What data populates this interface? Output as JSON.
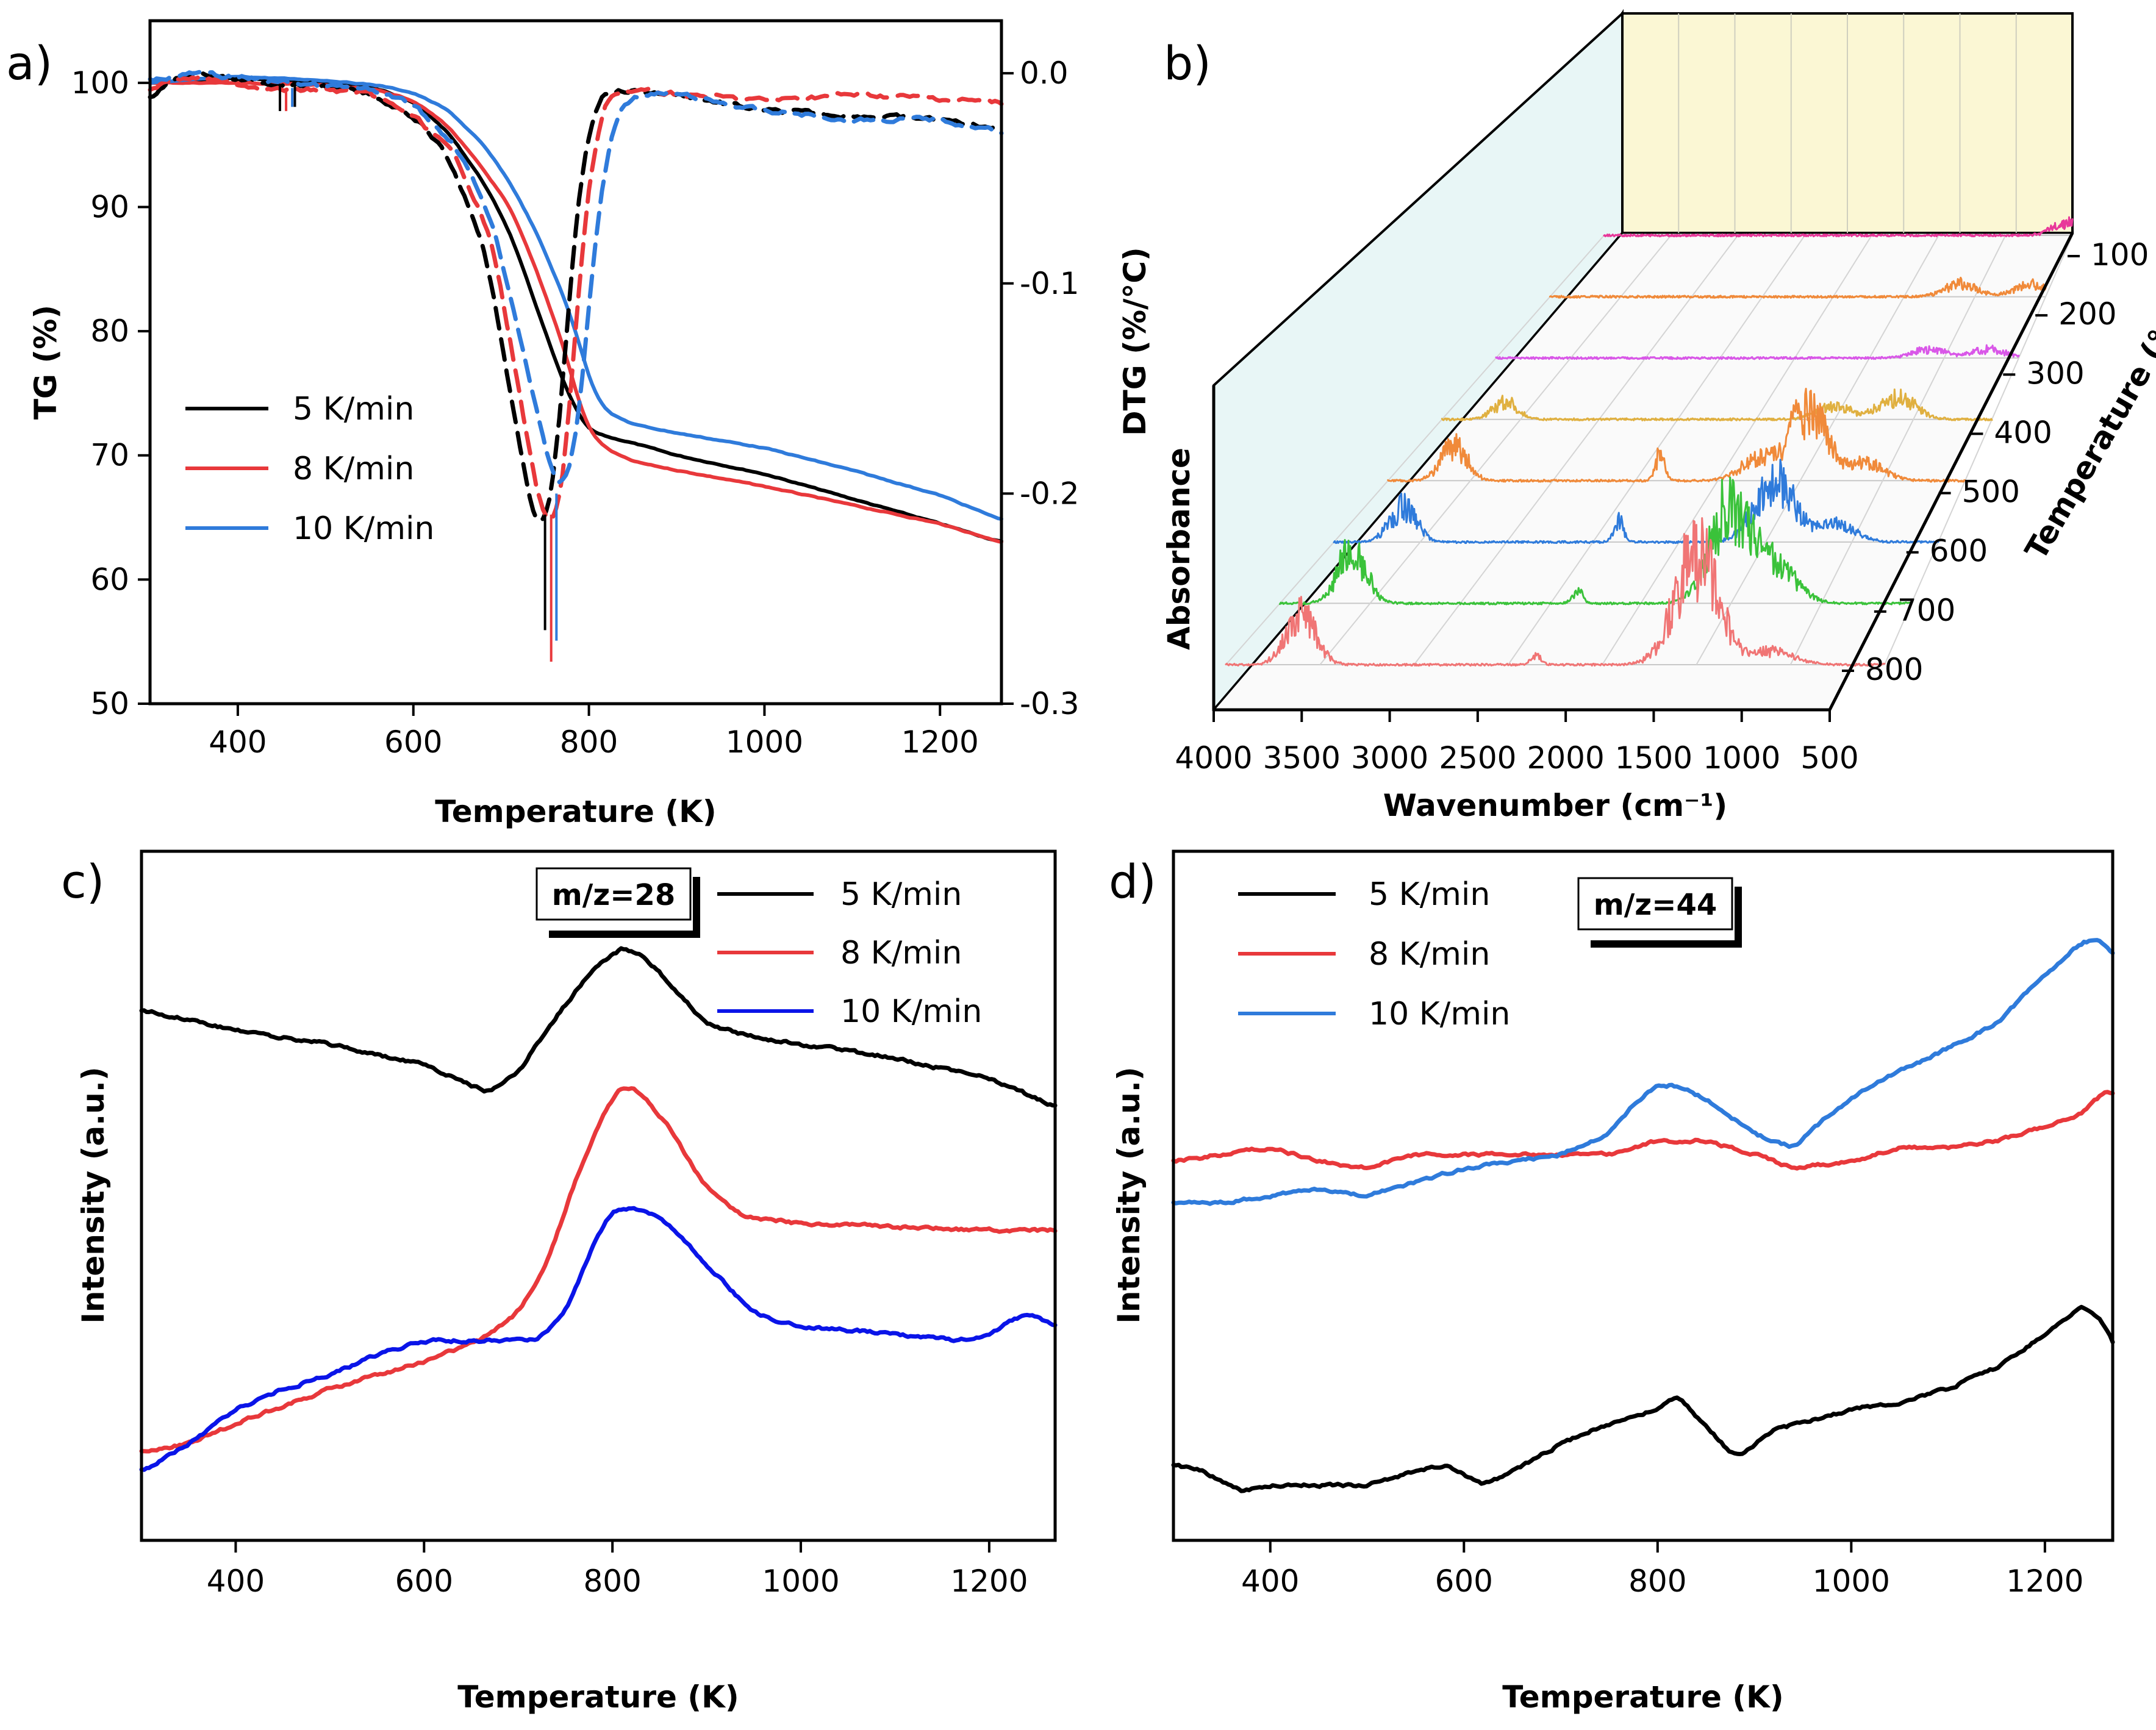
{
  "colors": {
    "black": "#000000",
    "red": "#e8383b",
    "blue": "#2f7bdb",
    "pureblue": "#0a14e8",
    "wall": "#e8f6f6",
    "back": "#fbf7d4"
  },
  "chart_data": [
    {
      "id": "a",
      "panel_label": "a)",
      "type": "line",
      "xlabel": "Temperature (K)",
      "ylabel": "TG (%)",
      "y2label": "DTG (%/°C)",
      "xlim": [
        300,
        1270
      ],
      "ylim": [
        50,
        105
      ],
      "y2lim": [
        -0.3,
        0.025
      ],
      "xticks": [
        "400",
        "600",
        "800",
        "1000",
        "1200"
      ],
      "yticks": [
        "50",
        "60",
        "70",
        "80",
        "90",
        "100"
      ],
      "y2ticks": [
        "-0.3",
        "-0.2",
        "-0.1",
        "0.0"
      ],
      "legend": [
        "5 K/min",
        "8 K/min",
        "10 K/min"
      ],
      "series": [
        {
          "name": "5 K/min TG",
          "axis": "left",
          "dash": false,
          "color": "black",
          "x": [
            300,
            400,
            500,
            560,
            600,
            640,
            680,
            710,
            740,
            770,
            790,
            800,
            820,
            850,
            900,
            1000,
            1100,
            1200,
            1270
          ],
          "y": [
            100,
            100.4,
            100,
            99.5,
            98.5,
            96,
            92,
            88,
            82,
            76,
            73,
            72,
            71.5,
            71,
            70,
            68.5,
            66.5,
            64.5,
            63
          ]
        },
        {
          "name": "8 K/min TG",
          "axis": "left",
          "dash": false,
          "color": "red",
          "x": [
            300,
            400,
            500,
            560,
            600,
            640,
            680,
            710,
            740,
            770,
            790,
            800,
            820,
            850,
            900,
            1000,
            1100,
            1200,
            1270
          ],
          "y": [
            100,
            100,
            99.8,
            99.4,
            98.6,
            96.5,
            93,
            90,
            85,
            79,
            74,
            72,
            70.5,
            69.5,
            68.8,
            67.5,
            66,
            64.5,
            63
          ]
        },
        {
          "name": "10 K/min TG",
          "axis": "left",
          "dash": false,
          "color": "blue",
          "x": [
            300,
            400,
            500,
            560,
            600,
            640,
            680,
            710,
            740,
            770,
            790,
            800,
            820,
            850,
            900,
            1000,
            1100,
            1200,
            1270
          ],
          "y": [
            100,
            100.5,
            100.2,
            99.8,
            99.2,
            97.8,
            95,
            92,
            88,
            83,
            79,
            76,
            73.5,
            72.5,
            71.8,
            70.6,
            68.8,
            66.8,
            64.8
          ]
        },
        {
          "name": "5 K/min DTG",
          "axis": "right",
          "dash": true,
          "color": "black",
          "x": [
            300,
            320,
            350,
            400,
            450,
            500,
            550,
            600,
            640,
            680,
            710,
            730,
            745,
            760,
            775,
            790,
            810,
            840,
            900,
            1000,
            1100,
            1200,
            1270
          ],
          "y": [
            -0.012,
            -0.005,
            0.001,
            -0.003,
            -0.005,
            -0.006,
            -0.01,
            -0.02,
            -0.04,
            -0.08,
            -0.15,
            -0.2,
            -0.22,
            -0.2,
            -0.12,
            -0.05,
            -0.01,
            -0.008,
            -0.01,
            -0.018,
            -0.02,
            -0.022,
            -0.026
          ]
        },
        {
          "name": "8 K/min DTG",
          "axis": "right",
          "dash": true,
          "color": "red",
          "x": [
            300,
            320,
            350,
            400,
            450,
            500,
            550,
            600,
            650,
            690,
            720,
            740,
            757,
            770,
            785,
            800,
            820,
            850,
            900,
            1000,
            1100,
            1200,
            1270
          ],
          "y": [
            -0.008,
            -0.003,
            -0.002,
            -0.005,
            -0.008,
            -0.008,
            -0.01,
            -0.02,
            -0.04,
            -0.08,
            -0.15,
            -0.2,
            -0.22,
            -0.2,
            -0.12,
            -0.05,
            -0.01,
            -0.008,
            -0.01,
            -0.013,
            -0.01,
            -0.012,
            -0.014
          ]
        },
        {
          "name": "10 K/min DTG",
          "axis": "right",
          "dash": true,
          "color": "blue",
          "x": [
            300,
            320,
            350,
            400,
            450,
            500,
            550,
            600,
            650,
            690,
            730,
            750,
            768,
            785,
            800,
            815,
            835,
            860,
            900,
            1000,
            1100,
            1200,
            1270
          ],
          "y": [
            -0.003,
            -0.002,
            0,
            -0.002,
            -0.004,
            -0.006,
            -0.008,
            -0.015,
            -0.035,
            -0.07,
            -0.14,
            -0.18,
            -0.2,
            -0.18,
            -0.11,
            -0.05,
            -0.015,
            -0.01,
            -0.01,
            -0.018,
            -0.022,
            -0.022,
            -0.028
          ]
        }
      ]
    },
    {
      "id": "b",
      "panel_label": "b)",
      "type": "line",
      "xlabel": "Wavenumber (cm⁻¹)",
      "ylabel": "Absorbance",
      "zlabel": "Temperature (°C)",
      "xlim": [
        500,
        4000
      ],
      "xticks": [
        "4000",
        "3500",
        "3000",
        "2500",
        "2000",
        "1500",
        "1000",
        "500"
      ],
      "zticks": [
        "100",
        "200",
        "300",
        "400",
        "500",
        "600",
        "700",
        "800"
      ],
      "series": [
        {
          "name": "100 °C",
          "color": "#e8389a",
          "peaks": [
            [
              530,
              0.3
            ]
          ]
        },
        {
          "name": "200 °C",
          "color": "#f08a3a",
          "peaks": [
            [
              1100,
              0.3
            ],
            [
              600,
              0.3
            ]
          ]
        },
        {
          "name": "300 °C",
          "color": "#d957e8",
          "peaks": [
            [
              1100,
              0.2
            ],
            [
              700,
              0.2
            ]
          ]
        },
        {
          "name": "400 °C",
          "color": "#e0b040",
          "peaks": [
            [
              3600,
              0.4
            ],
            [
              1500,
              0.3
            ],
            [
              1100,
              0.5
            ]
          ]
        },
        {
          "name": "500 °C",
          "color": "#f08a3a",
          "peaks": [
            [
              3600,
              0.8
            ],
            [
              2350,
              0.6
            ],
            [
              1750,
              0.5
            ],
            [
              1450,
              1.6
            ],
            [
              1100,
              0.4
            ]
          ]
        },
        {
          "name": "600 °C",
          "color": "#2f7bdb",
          "peaks": [
            [
              3600,
              0.8
            ],
            [
              2350,
              0.5
            ],
            [
              1450,
              1.4
            ],
            [
              1100,
              0.4
            ]
          ]
        },
        {
          "name": "700 °C",
          "color": "#3ac23a",
          "peaks": [
            [
              3600,
              1.2
            ],
            [
              2350,
              0.3
            ],
            [
              1500,
              2.2
            ],
            [
              1250,
              0.8
            ]
          ]
        },
        {
          "name": "800 °C",
          "color": "#f07575",
          "peaks": [
            [
              3600,
              1.2
            ],
            [
              2350,
              0.2
            ],
            [
              1500,
              2.6
            ],
            [
              1100,
              0.3
            ]
          ]
        }
      ]
    },
    {
      "id": "c",
      "panel_label": "c)",
      "type": "line",
      "annotation": "m/z=28",
      "xlabel": "Temperature (K)",
      "ylabel": "Intensity (a.u.)",
      "xlim": [
        300,
        1270
      ],
      "ylim": [
        0,
        100
      ],
      "xticks": [
        "400",
        "600",
        "800",
        "1000",
        "1200"
      ],
      "legend": [
        "5 K/min",
        "8 K/min",
        "10 K/min"
      ],
      "series": [
        {
          "name": "5 K/min",
          "color": "black",
          "x": [
            300,
            400,
            500,
            600,
            650,
            670,
            700,
            740,
            780,
            810,
            830,
            860,
            900,
            950,
            1000,
            1100,
            1200,
            1270
          ],
          "y": [
            77,
            74,
            72,
            69,
            66,
            65,
            68,
            76,
            83,
            86,
            85,
            81,
            75,
            73,
            72,
            70,
            67,
            63
          ]
        },
        {
          "name": "8 K/min",
          "color": "red",
          "x": [
            300,
            350,
            400,
            500,
            600,
            660,
            700,
            730,
            760,
            790,
            810,
            830,
            860,
            900,
            940,
            1000,
            1100,
            1200,
            1270
          ],
          "y": [
            13,
            14,
            17,
            22,
            26,
            29,
            33,
            40,
            52,
            62,
            66,
            65,
            60,
            51,
            47,
            46,
            45.5,
            45,
            45
          ]
        },
        {
          "name": "10 K/min",
          "color": "pureblue",
          "x": [
            300,
            350,
            400,
            450,
            500,
            550,
            600,
            650,
            700,
            720,
            750,
            780,
            800,
            830,
            860,
            900,
            950,
            1000,
            1100,
            1170,
            1200,
            1240,
            1270
          ],
          "y": [
            10,
            14,
            19,
            22,
            24,
            27,
            29,
            29,
            29,
            29,
            33,
            43,
            48,
            48,
            46,
            40,
            33,
            31,
            30,
            29,
            30,
            33,
            31
          ]
        }
      ]
    },
    {
      "id": "d",
      "panel_label": "d)",
      "type": "line",
      "annotation": "m/z=44",
      "xlabel": "Temperature (K)",
      "ylabel": "Intensity (a.u.)",
      "xlim": [
        300,
        1270
      ],
      "ylim": [
        0,
        100
      ],
      "xticks": [
        "400",
        "600",
        "800",
        "1000",
        "1200"
      ],
      "legend": [
        "5 K/min",
        "8 K/min",
        "10 K/min"
      ],
      "series": [
        {
          "name": "5 K/min",
          "color": "black",
          "x": [
            300,
            330,
            370,
            400,
            450,
            500,
            550,
            580,
            620,
            650,
            700,
            750,
            800,
            820,
            840,
            880,
            920,
            1000,
            1050,
            1100,
            1150,
            1200,
            1240,
            1260,
            1270
          ],
          "y": [
            11,
            10,
            7,
            8,
            8,
            8,
            10,
            11,
            8,
            10,
            14,
            17,
            19,
            21,
            18,
            12,
            16,
            19,
            20,
            22,
            25,
            30,
            34,
            32,
            28
          ]
        },
        {
          "name": "8 K/min",
          "color": "red",
          "x": [
            300,
            350,
            400,
            450,
            500,
            550,
            600,
            650,
            700,
            750,
            800,
            820,
            850,
            900,
            940,
            1000,
            1050,
            1100,
            1150,
            1200,
            1240,
            1260,
            1270
          ],
          "y": [
            55,
            56,
            57,
            55,
            54,
            56,
            56,
            56,
            56,
            56,
            58,
            58,
            58,
            56,
            54,
            55,
            57,
            57,
            58,
            60,
            62,
            65,
            65
          ]
        },
        {
          "name": "10 K/min",
          "color": "blue",
          "x": [
            300,
            350,
            400,
            450,
            500,
            550,
            600,
            650,
            700,
            750,
            780,
            800,
            820,
            850,
            900,
            940,
            980,
            1020,
            1080,
            1150,
            1200,
            1240,
            1260,
            1270
          ],
          "y": [
            49,
            49,
            50,
            51,
            50,
            52,
            54,
            55,
            56,
            59,
            64,
            66,
            66,
            64,
            59,
            57,
            62,
            66,
            70,
            75,
            82,
            87,
            87,
            85
          ]
        }
      ]
    }
  ]
}
